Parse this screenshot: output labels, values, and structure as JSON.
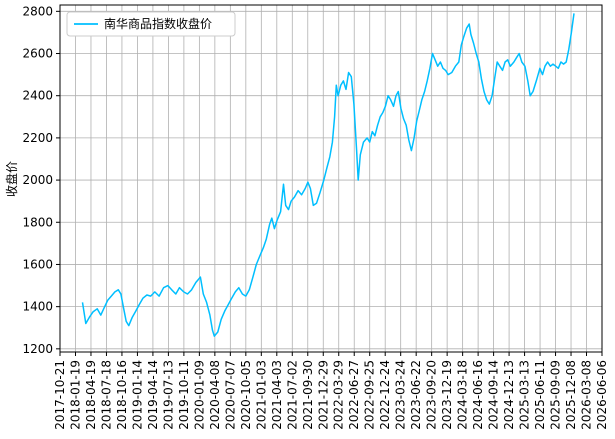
{
  "chart_data": {
    "type": "line",
    "ylabel": "收盘价",
    "ylim": [
      1185,
      2830
    ],
    "xlim": [
      "2017-10-21",
      "2026-06-06"
    ],
    "y_ticks": [
      1200,
      1400,
      1600,
      1800,
      2000,
      2200,
      2400,
      2600,
      2800
    ],
    "x_ticks": [
      "2017-10-21",
      "2018-01-19",
      "2018-04-19",
      "2018-07-18",
      "2018-10-16",
      "2019-01-14",
      "2019-04-14",
      "2019-07-13",
      "2019-10-11",
      "2020-01-09",
      "2020-04-08",
      "2020-07-07",
      "2020-10-05",
      "2021-01-03",
      "2021-04-03",
      "2021-07-02",
      "2021-09-30",
      "2021-12-29",
      "2022-03-29",
      "2022-06-27",
      "2022-09-25",
      "2022-12-24",
      "2023-03-24",
      "2023-06-22",
      "2023-09-20",
      "2023-12-19",
      "2024-03-18",
      "2024-06-16",
      "2024-09-14",
      "2024-12-13",
      "2025-03-13",
      "2025-06-11",
      "2025-09-09",
      "2025-12-08",
      "2026-03-08",
      "2026-06-06"
    ],
    "grid": true,
    "legend": "top-left",
    "series": [
      {
        "name": "南华商品指数收盘价",
        "color": "#00bfff",
        "points": [
          [
            "2018-03-01",
            1420
          ],
          [
            "2018-03-20",
            1320
          ],
          [
            "2018-04-10",
            1350
          ],
          [
            "2018-05-01",
            1375
          ],
          [
            "2018-05-25",
            1390
          ],
          [
            "2018-06-15",
            1360
          ],
          [
            "2018-07-05",
            1395
          ],
          [
            "2018-07-25",
            1430
          ],
          [
            "2018-08-15",
            1450
          ],
          [
            "2018-09-05",
            1470
          ],
          [
            "2018-09-25",
            1480
          ],
          [
            "2018-10-10",
            1460
          ],
          [
            "2018-10-25",
            1395
          ],
          [
            "2018-11-10",
            1330
          ],
          [
            "2018-11-25",
            1310
          ],
          [
            "2018-12-15",
            1350
          ],
          [
            "2019-01-05",
            1380
          ],
          [
            "2019-01-25",
            1410
          ],
          [
            "2019-02-15",
            1440
          ],
          [
            "2019-03-10",
            1455
          ],
          [
            "2019-04-01",
            1450
          ],
          [
            "2019-04-25",
            1470
          ],
          [
            "2019-05-20",
            1450
          ],
          [
            "2019-06-15",
            1490
          ],
          [
            "2019-07-10",
            1500
          ],
          [
            "2019-08-01",
            1480
          ],
          [
            "2019-08-25",
            1460
          ],
          [
            "2019-09-15",
            1490
          ],
          [
            "2019-10-10",
            1470
          ],
          [
            "2019-11-01",
            1460
          ],
          [
            "2019-11-25",
            1480
          ],
          [
            "2019-12-20",
            1515
          ],
          [
            "2020-01-15",
            1540
          ],
          [
            "2020-02-01",
            1460
          ],
          [
            "2020-02-20",
            1420
          ],
          [
            "2020-03-10",
            1360
          ],
          [
            "2020-03-25",
            1290
          ],
          [
            "2020-04-05",
            1260
          ],
          [
            "2020-04-25",
            1280
          ],
          [
            "2020-05-15",
            1340
          ],
          [
            "2020-06-05",
            1380
          ],
          [
            "2020-06-25",
            1410
          ],
          [
            "2020-07-15",
            1440
          ],
          [
            "2020-08-05",
            1470
          ],
          [
            "2020-08-25",
            1490
          ],
          [
            "2020-09-15",
            1460
          ],
          [
            "2020-10-05",
            1450
          ],
          [
            "2020-10-25",
            1480
          ],
          [
            "2020-11-15",
            1540
          ],
          [
            "2020-12-05",
            1600
          ],
          [
            "2020-12-25",
            1640
          ],
          [
            "2021-01-15",
            1680
          ],
          [
            "2021-02-01",
            1720
          ],
          [
            "2021-02-20",
            1790
          ],
          [
            "2021-03-05",
            1820
          ],
          [
            "2021-03-20",
            1770
          ],
          [
            "2021-04-05",
            1810
          ],
          [
            "2021-04-25",
            1850
          ],
          [
            "2021-05-12",
            1980
          ],
          [
            "2021-05-25",
            1880
          ],
          [
            "2021-06-10",
            1860
          ],
          [
            "2021-06-25",
            1900
          ],
          [
            "2021-07-15",
            1920
          ],
          [
            "2021-08-05",
            1950
          ],
          [
            "2021-08-25",
            1930
          ],
          [
            "2021-09-15",
            1960
          ],
          [
            "2021-10-01",
            1990
          ],
          [
            "2021-10-15",
            1960
          ],
          [
            "2021-11-01",
            1880
          ],
          [
            "2021-11-20",
            1890
          ],
          [
            "2021-12-10",
            1940
          ],
          [
            "2022-01-01",
            2000
          ],
          [
            "2022-01-20",
            2060
          ],
          [
            "2022-02-05",
            2110
          ],
          [
            "2022-02-20",
            2180
          ],
          [
            "2022-03-05",
            2300
          ],
          [
            "2022-03-15",
            2450
          ],
          [
            "2022-03-25",
            2400
          ],
          [
            "2022-04-10",
            2450
          ],
          [
            "2022-04-25",
            2470
          ],
          [
            "2022-05-10",
            2430
          ],
          [
            "2022-05-25",
            2510
          ],
          [
            "2022-06-10",
            2490
          ],
          [
            "2022-06-25",
            2360
          ],
          [
            "2022-07-10",
            2150
          ],
          [
            "2022-07-20",
            2000
          ],
          [
            "2022-08-01",
            2120
          ],
          [
            "2022-08-20",
            2180
          ],
          [
            "2022-09-10",
            2200
          ],
          [
            "2022-09-25",
            2180
          ],
          [
            "2022-10-10",
            2230
          ],
          [
            "2022-10-25",
            2210
          ],
          [
            "2022-11-10",
            2260
          ],
          [
            "2022-11-25",
            2300
          ],
          [
            "2022-12-10",
            2320
          ],
          [
            "2022-12-25",
            2350
          ],
          [
            "2023-01-10",
            2400
          ],
          [
            "2023-01-25",
            2380
          ],
          [
            "2023-02-10",
            2350
          ],
          [
            "2023-02-25",
            2400
          ],
          [
            "2023-03-10",
            2420
          ],
          [
            "2023-03-25",
            2340
          ],
          [
            "2023-04-10",
            2290
          ],
          [
            "2023-04-25",
            2260
          ],
          [
            "2023-05-10",
            2190
          ],
          [
            "2023-05-25",
            2140
          ],
          [
            "2023-06-10",
            2200
          ],
          [
            "2023-06-25",
            2280
          ],
          [
            "2023-07-10",
            2330
          ],
          [
            "2023-07-25",
            2380
          ],
          [
            "2023-08-10",
            2420
          ],
          [
            "2023-08-25",
            2470
          ],
          [
            "2023-09-10",
            2530
          ],
          [
            "2023-09-25",
            2600
          ],
          [
            "2023-10-10",
            2570
          ],
          [
            "2023-10-25",
            2540
          ],
          [
            "2023-11-10",
            2560
          ],
          [
            "2023-11-25",
            2530
          ],
          [
            "2023-12-10",
            2520
          ],
          [
            "2023-12-25",
            2500
          ],
          [
            "2024-01-15",
            2510
          ],
          [
            "2024-02-05",
            2540
          ],
          [
            "2024-02-25",
            2560
          ],
          [
            "2024-03-10",
            2640
          ],
          [
            "2024-03-25",
            2680
          ],
          [
            "2024-04-10",
            2720
          ],
          [
            "2024-04-25",
            2740
          ],
          [
            "2024-05-05",
            2690
          ],
          [
            "2024-05-20",
            2650
          ],
          [
            "2024-06-05",
            2600
          ],
          [
            "2024-06-20",
            2560
          ],
          [
            "2024-07-05",
            2480
          ],
          [
            "2024-07-20",
            2420
          ],
          [
            "2024-08-05",
            2380
          ],
          [
            "2024-08-20",
            2360
          ],
          [
            "2024-09-05",
            2400
          ],
          [
            "2024-09-20",
            2480
          ],
          [
            "2024-10-05",
            2560
          ],
          [
            "2024-10-20",
            2540
          ],
          [
            "2024-11-05",
            2520
          ],
          [
            "2024-11-20",
            2560
          ],
          [
            "2024-12-05",
            2570
          ],
          [
            "2024-12-20",
            2540
          ],
          [
            "2025-01-10",
            2560
          ],
          [
            "2025-01-25",
            2580
          ],
          [
            "2025-02-10",
            2600
          ],
          [
            "2025-02-25",
            2560
          ],
          [
            "2025-03-15",
            2540
          ],
          [
            "2025-04-01",
            2470
          ],
          [
            "2025-04-15",
            2400
          ],
          [
            "2025-05-01",
            2420
          ],
          [
            "2025-05-20",
            2470
          ],
          [
            "2025-06-10",
            2530
          ],
          [
            "2025-06-25",
            2500
          ],
          [
            "2025-07-10",
            2540
          ],
          [
            "2025-07-25",
            2560
          ],
          [
            "2025-08-10",
            2540
          ],
          [
            "2025-08-25",
            2550
          ],
          [
            "2025-09-10",
            2540
          ],
          [
            "2025-09-25",
            2530
          ],
          [
            "2025-10-10",
            2560
          ],
          [
            "2025-10-25",
            2550
          ],
          [
            "2025-11-10",
            2560
          ],
          [
            "2025-11-25",
            2620
          ],
          [
            "2025-12-10",
            2700
          ],
          [
            "2025-12-25",
            2790
          ]
        ]
      }
    ]
  }
}
